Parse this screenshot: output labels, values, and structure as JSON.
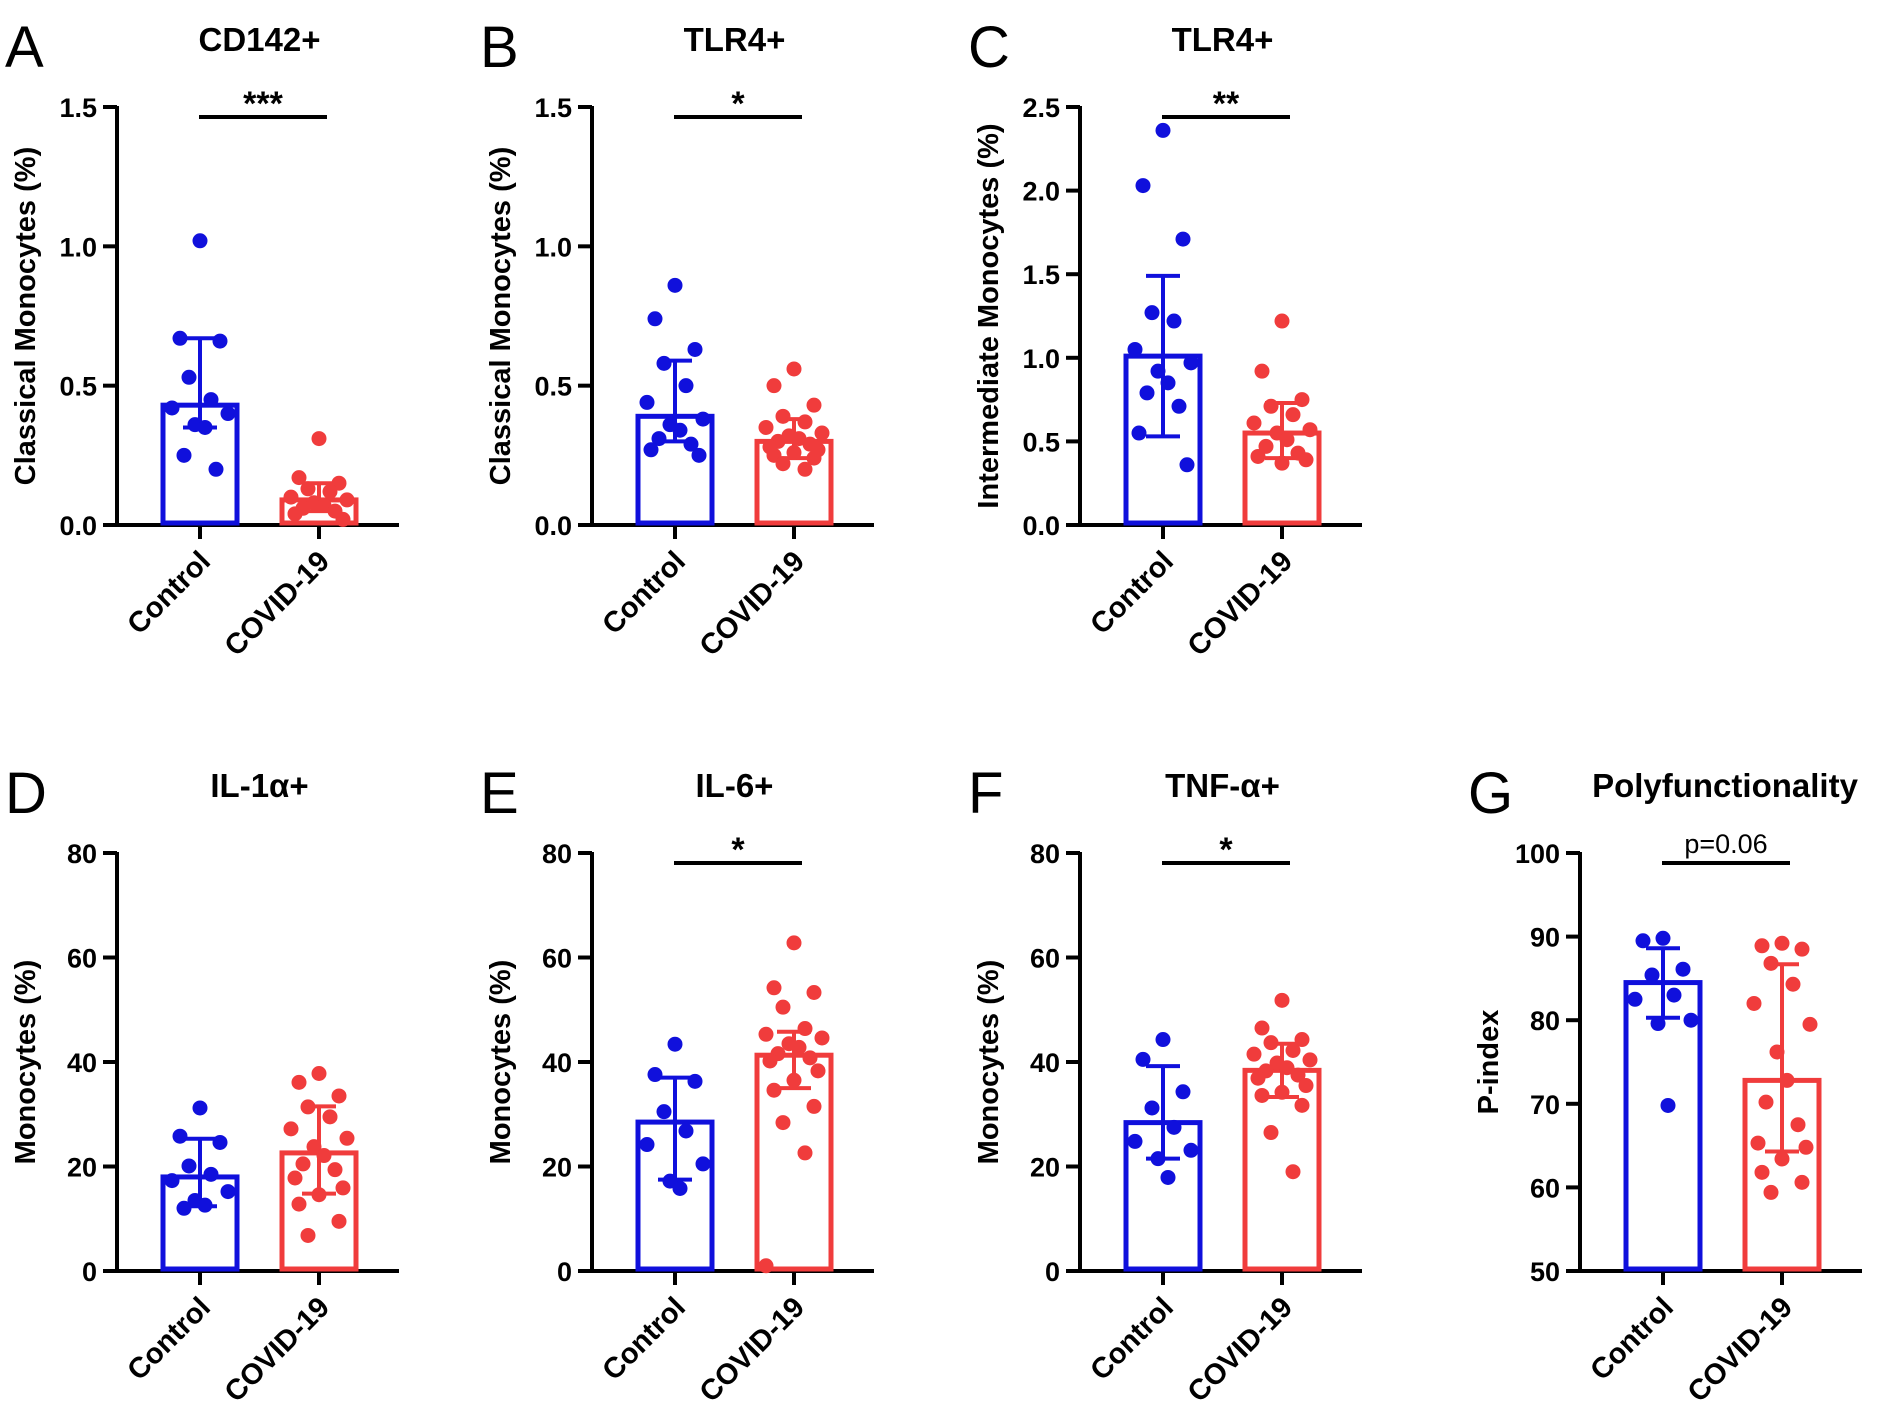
{
  "colors": {
    "control": "#1010dc",
    "covid": "#f03c3c",
    "axis": "#000000"
  },
  "chart_data": [
    {
      "type": "bar",
      "panel_letter": "A",
      "title": "CD142+",
      "ylabel": "Classical Monocytes (%)",
      "ylim": [
        0,
        1.5
      ],
      "yticks": [
        "0.0",
        "0.5",
        "1.0",
        "1.5"
      ],
      "tick_values": [
        0,
        0.5,
        1.0,
        1.5
      ],
      "categories": [
        "Control",
        "COVID-19"
      ],
      "series": [
        {
          "name": "Control",
          "color": "#1010dc",
          "mean": 0.43,
          "error_upper": 0.67,
          "error_lower": 0.35,
          "points": [
            1.02,
            0.67,
            0.66,
            0.53,
            0.45,
            0.42,
            0.4,
            0.36,
            0.35,
            0.25,
            0.2
          ]
        },
        {
          "name": "COVID-19",
          "color": "#f03c3c",
          "mean": 0.09,
          "error_upper": 0.15,
          "error_lower": 0.05,
          "points": [
            0.31,
            0.17,
            0.15,
            0.13,
            0.12,
            0.1,
            0.09,
            0.08,
            0.07,
            0.06,
            0.05,
            0.04,
            0.02
          ]
        }
      ],
      "significance": "***"
    },
    {
      "type": "bar",
      "panel_letter": "B",
      "title": "TLR4+",
      "ylabel": "Classical Monocytes (%)",
      "ylim": [
        0,
        1.5
      ],
      "yticks": [
        "0.0",
        "0.5",
        "1.0",
        "1.5"
      ],
      "tick_values": [
        0,
        0.5,
        1.0,
        1.5
      ],
      "categories": [
        "Control",
        "COVID-19"
      ],
      "series": [
        {
          "name": "Control",
          "color": "#1010dc",
          "mean": 0.39,
          "error_upper": 0.59,
          "error_lower": 0.3,
          "points": [
            0.86,
            0.74,
            0.63,
            0.58,
            0.5,
            0.44,
            0.38,
            0.36,
            0.34,
            0.31,
            0.29,
            0.27,
            0.25
          ]
        },
        {
          "name": "COVID-19",
          "color": "#f03c3c",
          "mean": 0.3,
          "error_upper": 0.38,
          "error_lower": 0.24,
          "points": [
            0.56,
            0.5,
            0.43,
            0.39,
            0.37,
            0.35,
            0.33,
            0.32,
            0.31,
            0.3,
            0.29,
            0.28,
            0.27,
            0.26,
            0.25,
            0.24,
            0.22,
            0.2
          ]
        }
      ],
      "significance": "*"
    },
    {
      "type": "bar",
      "panel_letter": "C",
      "title": "TLR4+",
      "ylabel": "Intermediate Monocytes (%)",
      "ylim": [
        0,
        2.5
      ],
      "yticks": [
        "0.0",
        "0.5",
        "1.0",
        "1.5",
        "2.0",
        "2.5"
      ],
      "tick_values": [
        0,
        0.5,
        1.0,
        1.5,
        2.0,
        2.5
      ],
      "categories": [
        "Control",
        "COVID-19"
      ],
      "series": [
        {
          "name": "Control",
          "color": "#1010dc",
          "mean": 1.01,
          "error_upper": 1.49,
          "error_lower": 0.53,
          "points": [
            2.36,
            2.03,
            1.71,
            1.27,
            1.22,
            1.05,
            0.97,
            0.92,
            0.85,
            0.79,
            0.71,
            0.55,
            0.36
          ]
        },
        {
          "name": "COVID-19",
          "color": "#f03c3c",
          "mean": 0.55,
          "error_upper": 0.73,
          "error_lower": 0.4,
          "points": [
            1.22,
            0.92,
            0.75,
            0.71,
            0.66,
            0.61,
            0.57,
            0.55,
            0.51,
            0.47,
            0.43,
            0.41,
            0.39,
            0.37
          ]
        }
      ],
      "significance": "**"
    },
    {
      "type": "bar",
      "panel_letter": "D",
      "title": "IL-1α+",
      "ylabel": "Monocytes (%)",
      "ylim": [
        0,
        80
      ],
      "yticks": [
        "0",
        "20",
        "40",
        "60",
        "80"
      ],
      "tick_values": [
        0,
        20,
        40,
        60,
        80
      ],
      "categories": [
        "Control",
        "COVID-19"
      ],
      "series": [
        {
          "name": "Control",
          "color": "#1010dc",
          "mean": 18.0,
          "error_upper": 25.3,
          "error_lower": 12.4,
          "points": [
            31.2,
            25.8,
            24.6,
            20.1,
            18.5,
            17.3,
            15.2,
            13.5,
            12.6,
            12.0
          ]
        },
        {
          "name": "COVID-19",
          "color": "#f03c3c",
          "mean": 22.6,
          "error_upper": 31.5,
          "error_lower": 14.8,
          "points": [
            37.8,
            36.1,
            33.5,
            31.4,
            29.5,
            27.2,
            25.4,
            23.8,
            22.1,
            20.5,
            19.4,
            17.8,
            15.9,
            14.6,
            12.8,
            9.5,
            6.8
          ]
        }
      ],
      "significance": ""
    },
    {
      "type": "bar",
      "panel_letter": "E",
      "title": "IL-6+",
      "ylabel": "Monocytes (%)",
      "ylim": [
        0,
        80
      ],
      "yticks": [
        "0",
        "20",
        "40",
        "60",
        "80"
      ],
      "tick_values": [
        0,
        20,
        40,
        60,
        80
      ],
      "categories": [
        "Control",
        "COVID-19"
      ],
      "series": [
        {
          "name": "Control",
          "color": "#1010dc",
          "mean": 28.5,
          "error_upper": 37.0,
          "error_lower": 17.5,
          "points": [
            43.4,
            37.6,
            36.3,
            30.5,
            26.8,
            24.2,
            20.5,
            17.2,
            15.8
          ]
        },
        {
          "name": "COVID-19",
          "color": "#f03c3c",
          "mean": 41.3,
          "error_upper": 45.8,
          "error_lower": 35.0,
          "points": [
            62.8,
            54.2,
            53.3,
            50.5,
            46.4,
            45.3,
            44.6,
            43.5,
            42.8,
            41.6,
            40.8,
            40.2,
            38.3,
            36.5,
            34.6,
            31.5,
            28.4,
            22.6,
            1.0
          ]
        }
      ],
      "significance": "*"
    },
    {
      "type": "bar",
      "panel_letter": "F",
      "title": "TNF-α+",
      "ylabel": "Monocytes (%)",
      "ylim": [
        0,
        80
      ],
      "yticks": [
        "0",
        "20",
        "40",
        "60",
        "80"
      ],
      "tick_values": [
        0,
        20,
        40,
        60,
        80
      ],
      "categories": [
        "Control",
        "COVID-19"
      ],
      "series": [
        {
          "name": "Control",
          "color": "#1010dc",
          "mean": 28.4,
          "error_upper": 39.2,
          "error_lower": 21.5,
          "points": [
            44.3,
            40.5,
            34.3,
            31.2,
            27.5,
            24.8,
            23.1,
            21.5,
            17.9
          ]
        },
        {
          "name": "COVID-19",
          "color": "#f03c3c",
          "mean": 38.4,
          "error_upper": 43.5,
          "error_lower": 33.3,
          "points": [
            51.8,
            46.5,
            44.3,
            43.7,
            42.2,
            41.5,
            40.4,
            39.8,
            38.9,
            38.3,
            37.5,
            36.9,
            35.5,
            34.2,
            33.6,
            31.7,
            26.5,
            19.0
          ]
        }
      ],
      "significance": "*"
    },
    {
      "type": "bar",
      "panel_letter": "G",
      "title": "Polyfunctionality",
      "ylabel": "P-index",
      "ylim": [
        50,
        100
      ],
      "yticks": [
        "50",
        "60",
        "70",
        "80",
        "90",
        "100"
      ],
      "tick_values": [
        50,
        60,
        70,
        80,
        90,
        100
      ],
      "categories": [
        "Control",
        "COVID-19"
      ],
      "series": [
        {
          "name": "Control",
          "color": "#1010dc",
          "mean": 84.5,
          "error_upper": 88.6,
          "error_lower": 80.3,
          "points": [
            89.8,
            89.5,
            86.1,
            85.4,
            83.0,
            82.5,
            80.0,
            79.6,
            69.8
          ]
        },
        {
          "name": "COVID-19",
          "color": "#f03c3c",
          "mean": 72.8,
          "error_upper": 86.7,
          "error_lower": 64.3,
          "points": [
            89.2,
            88.9,
            88.5,
            86.8,
            84.3,
            82.0,
            79.5,
            76.2,
            72.8,
            70.2,
            67.5,
            65.3,
            64.8,
            63.4,
            61.8,
            60.6,
            59.4
          ]
        }
      ],
      "significance": "p=0.06"
    }
  ]
}
